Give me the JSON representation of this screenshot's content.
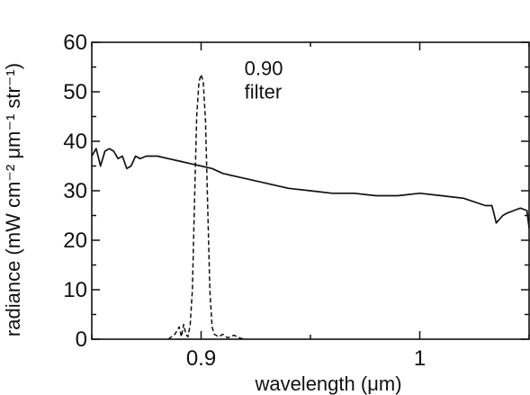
{
  "chart_data": {
    "type": "line",
    "xlabel": "wavelength (μm)",
    "ylabel": "radiance (mW cm⁻² μm⁻¹ str⁻¹)",
    "xlim": [
      0.85,
      1.05
    ],
    "ylim": [
      0,
      60
    ],
    "x_ticks": [
      0.9,
      1.0
    ],
    "x_tick_labels": [
      "0.9",
      "1"
    ],
    "y_ticks": [
      0,
      10,
      20,
      30,
      40,
      50,
      60
    ],
    "y_tick_labels": [
      "0",
      "10",
      "20",
      "30",
      "40",
      "50",
      "60"
    ],
    "grid": false,
    "annotation": {
      "lines": [
        "0.90",
        "filter"
      ],
      "x": 0.905,
      "y": 53
    },
    "series": [
      {
        "style": "solid",
        "x": [
          0.85,
          0.852,
          0.854,
          0.856,
          0.858,
          0.86,
          0.862,
          0.864,
          0.866,
          0.868,
          0.87,
          0.872,
          0.875,
          0.88,
          0.885,
          0.89,
          0.895,
          0.9,
          0.905,
          0.91,
          0.92,
          0.93,
          0.94,
          0.95,
          0.96,
          0.97,
          0.98,
          0.99,
          1.0,
          1.01,
          1.02,
          1.03,
          1.033,
          1.035,
          1.038,
          1.04,
          1.043,
          1.046,
          1.049,
          1.05
        ],
        "y": [
          37,
          38.5,
          35,
          38,
          38.5,
          38,
          36.5,
          37,
          34.5,
          35,
          37,
          36.5,
          37,
          37,
          36.5,
          36,
          35.5,
          35,
          34.5,
          33.5,
          32.5,
          31.5,
          30.5,
          30,
          29.5,
          29.5,
          29,
          29,
          29.5,
          29,
          28.5,
          27,
          27,
          23.5,
          25,
          25.5,
          26,
          26.5,
          26,
          22.5
        ]
      },
      {
        "style": "dashed",
        "x": [
          0.885,
          0.888,
          0.89,
          0.891,
          0.892,
          0.893,
          0.894,
          0.895,
          0.896,
          0.897,
          0.898,
          0.899,
          0.9,
          0.901,
          0.902,
          0.903,
          0.904,
          0.905,
          0.906,
          0.908,
          0.91,
          0.912,
          0.915,
          0.918,
          0.92
        ],
        "y": [
          0,
          1,
          2.5,
          0.5,
          3,
          1,
          0.5,
          3,
          10,
          28,
          45,
          52,
          53.5,
          52,
          44,
          27,
          10,
          2.5,
          1,
          0.5,
          1,
          0.3,
          0.8,
          0.2,
          0
        ]
      }
    ]
  }
}
